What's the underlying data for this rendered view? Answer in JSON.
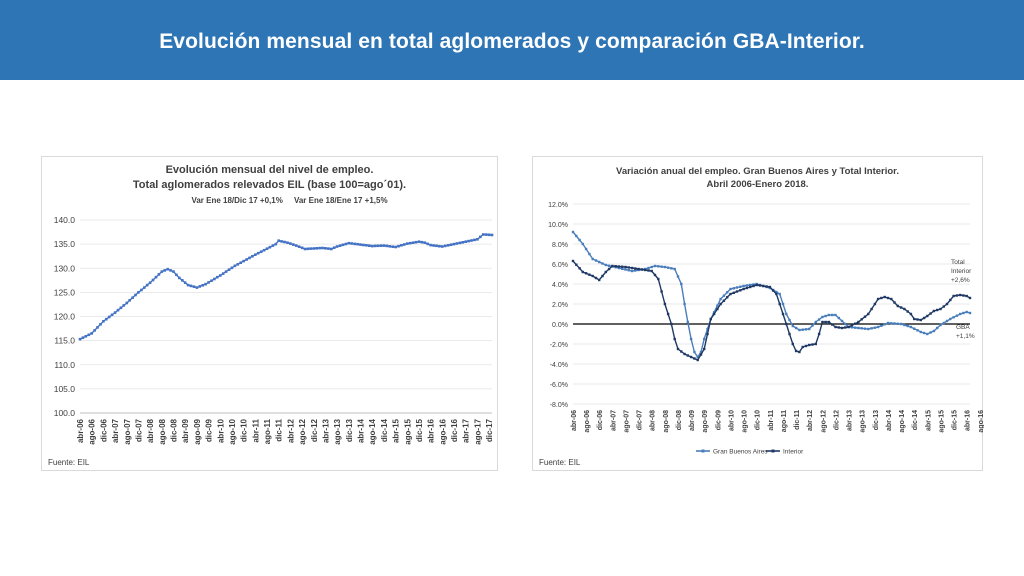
{
  "header": {
    "title": "Evolución mensual en total aglomerados y comparación GBA-Interior.",
    "bg_color": "#2e75b6"
  },
  "left_panel": {
    "source": "Fuente: EIL"
  },
  "right_panel": {
    "source": "Fuente: EIL",
    "annotation_interior": [
      "Total",
      "Interior",
      "+2,6%"
    ],
    "annotation_gba": [
      "GBA",
      "+1,1%"
    ]
  },
  "chart_data": [
    {
      "type": "line",
      "title": "Evolución mensual del nivel de empleo.",
      "subtitle": "Total aglomerados relevados EIL (base 100=ago´01).",
      "note": "Var Ene 18/Dic 17 +0,1%     Var Ene 18/Ene 17 +1,5%",
      "ylim": [
        100,
        140
      ],
      "yticks": [
        "140.0",
        "135.0",
        "130.0",
        "125.0",
        "120.0",
        "115.0",
        "110.0",
        "105.0",
        "100.0"
      ],
      "xtick_labels": [
        "abr-06",
        "ago-06",
        "dic-06",
        "abr-07",
        "ago-07",
        "dic-07",
        "abr-08",
        "ago-08",
        "dic-08",
        "abr-09",
        "ago-09",
        "dic-09",
        "abr-10",
        "ago-10",
        "dic-10",
        "abr-11",
        "ago-11",
        "dic-11",
        "abr-12",
        "ago-12",
        "dic-12",
        "abr-13",
        "ago-13",
        "dic-13",
        "abr-14",
        "ago-14",
        "dic-14",
        "abr-15",
        "ago-15",
        "dic-15",
        "abr-16",
        "ago-16",
        "dic-16",
        "abr-17",
        "ago-17",
        "dic-17"
      ],
      "grid": true,
      "color": "#4472c4",
      "series": [
        {
          "anchors": [
            [
              0,
              115.3
            ],
            [
              4,
              116.5
            ],
            [
              8,
              119.0
            ],
            [
              12,
              120.8
            ],
            [
              16,
              122.8
            ],
            [
              20,
              125.0
            ],
            [
              24,
              127.0
            ],
            [
              28,
              129.3
            ],
            [
              30,
              129.8
            ],
            [
              32,
              129.3
            ],
            [
              34,
              128.0
            ],
            [
              37,
              126.5
            ],
            [
              40,
              126.0
            ],
            [
              43,
              126.7
            ],
            [
              48,
              128.5
            ],
            [
              53,
              130.5
            ],
            [
              60,
              132.8
            ],
            [
              67,
              135.0
            ],
            [
              68,
              135.7
            ],
            [
              71,
              135.3
            ],
            [
              74,
              134.7
            ],
            [
              77,
              134.0
            ],
            [
              83,
              134.2
            ],
            [
              86,
              134.0
            ],
            [
              88,
              134.5
            ],
            [
              92,
              135.2
            ],
            [
              96,
              134.9
            ],
            [
              100,
              134.6
            ],
            [
              104,
              134.7
            ],
            [
              108,
              134.4
            ],
            [
              112,
              135.1
            ],
            [
              116,
              135.5
            ],
            [
              118,
              135.3
            ],
            [
              120,
              134.8
            ],
            [
              124,
              134.5
            ],
            [
              128,
              135.0
            ],
            [
              132,
              135.5
            ],
            [
              136,
              136.0
            ],
            [
              138,
              137.0
            ],
            [
              141,
              136.9
            ]
          ]
        }
      ]
    },
    {
      "type": "line",
      "title": "Variación anual del empleo. Gran Buenos Aires y Total Interior.",
      "subtitle": "Abril 2006-Enero 2018.",
      "ylim": [
        -8,
        12
      ],
      "yticks": [
        "12.0%",
        "10.0%",
        "8.0%",
        "6.0%",
        "4.0%",
        "2.0%",
        "0.0%",
        "-2.0%",
        "-4.0%",
        "-6.0%",
        "-8.0%"
      ],
      "xtick_labels": [
        "abr-06",
        "ago-06",
        "dic-06",
        "abr-07",
        "ago-07",
        "dic-07",
        "abr-08",
        "ago-08",
        "dic-08",
        "abr-09",
        "ago-09",
        "dic-09",
        "abr-10",
        "ago-10",
        "dic-10",
        "abr-11",
        "ago-11",
        "dic-11",
        "abr-12",
        "ago-12",
        "dic-12",
        "abr-13",
        "ago-13",
        "dic-13",
        "abr-14",
        "ago-14",
        "dic-14",
        "abr-15",
        "ago-15",
        "dic-15",
        "abr-16",
        "ago-16",
        "dic-16",
        "abr-17",
        "ago-17",
        "dic-17"
      ],
      "grid": true,
      "legend_position": "bottom",
      "series": [
        {
          "name": "Gran Buenos Aires",
          "color": "#4a7ebb",
          "anchors": [
            [
              0,
              9.2
            ],
            [
              3,
              8.0
            ],
            [
              6,
              6.5
            ],
            [
              10,
              5.9
            ],
            [
              14,
              5.6
            ],
            [
              18,
              5.3
            ],
            [
              22,
              5.5
            ],
            [
              25,
              5.8
            ],
            [
              28,
              5.7
            ],
            [
              31,
              5.5
            ],
            [
              33,
              4.0
            ],
            [
              34,
              2.0
            ],
            [
              35,
              0.2
            ],
            [
              36,
              -1.5
            ],
            [
              37,
              -2.8
            ],
            [
              38,
              -3.3
            ],
            [
              39,
              -2.8
            ],
            [
              40,
              -1.5
            ],
            [
              42,
              0.5
            ],
            [
              45,
              2.5
            ],
            [
              48,
              3.5
            ],
            [
              52,
              3.8
            ],
            [
              56,
              4.0
            ],
            [
              60,
              3.6
            ],
            [
              63,
              3.0
            ],
            [
              65,
              1.0
            ],
            [
              67,
              -0.2
            ],
            [
              69,
              -0.6
            ],
            [
              72,
              -0.5
            ],
            [
              74,
              0.2
            ],
            [
              76,
              0.7
            ],
            [
              78,
              0.9
            ],
            [
              80,
              0.9
            ],
            [
              82,
              0.3
            ],
            [
              84,
              -0.3
            ],
            [
              87,
              -0.4
            ],
            [
              90,
              -0.5
            ],
            [
              93,
              -0.3
            ],
            [
              96,
              0.1
            ],
            [
              100,
              0.0
            ],
            [
              103,
              -0.3
            ],
            [
              106,
              -0.8
            ],
            [
              108,
              -1.0
            ],
            [
              110,
              -0.7
            ],
            [
              112,
              -0.1
            ],
            [
              115,
              0.5
            ],
            [
              118,
              1.0
            ],
            [
              120,
              1.2
            ],
            [
              121,
              1.1
            ]
          ]
        },
        {
          "name": "Interior",
          "color": "#1f3864",
          "anchors": [
            [
              0,
              6.3
            ],
            [
              3,
              5.2
            ],
            [
              6,
              4.8
            ],
            [
              8,
              4.4
            ],
            [
              10,
              5.2
            ],
            [
              12,
              5.8
            ],
            [
              16,
              5.7
            ],
            [
              20,
              5.5
            ],
            [
              24,
              5.3
            ],
            [
              26,
              4.5
            ],
            [
              28,
              2.0
            ],
            [
              30,
              0.0
            ],
            [
              31,
              -1.5
            ],
            [
              32,
              -2.5
            ],
            [
              34,
              -3.0
            ],
            [
              36,
              -3.3
            ],
            [
              38,
              -3.6
            ],
            [
              40,
              -2.5
            ],
            [
              42,
              0.5
            ],
            [
              45,
              2.0
            ],
            [
              48,
              3.0
            ],
            [
              52,
              3.5
            ],
            [
              56,
              3.9
            ],
            [
              60,
              3.7
            ],
            [
              62,
              3.0
            ],
            [
              64,
              1.0
            ],
            [
              66,
              -1.0
            ],
            [
              67,
              -2.0
            ],
            [
              68,
              -2.7
            ],
            [
              69,
              -2.8
            ],
            [
              70,
              -2.3
            ],
            [
              72,
              -2.1
            ],
            [
              74,
              -2.0
            ],
            [
              75,
              -1.0
            ],
            [
              76,
              0.2
            ],
            [
              78,
              0.2
            ],
            [
              80,
              -0.3
            ],
            [
              82,
              -0.4
            ],
            [
              84,
              -0.3
            ],
            [
              87,
              0.2
            ],
            [
              90,
              1.0
            ],
            [
              93,
              2.5
            ],
            [
              95,
              2.7
            ],
            [
              97,
              2.5
            ],
            [
              99,
              1.8
            ],
            [
              101,
              1.5
            ],
            [
              103,
              1.0
            ],
            [
              104,
              0.5
            ],
            [
              106,
              0.4
            ],
            [
              108,
              0.8
            ],
            [
              110,
              1.3
            ],
            [
              112,
              1.5
            ],
            [
              114,
              2.0
            ],
            [
              116,
              2.8
            ],
            [
              118,
              2.9
            ],
            [
              120,
              2.8
            ],
            [
              121,
              2.6
            ]
          ]
        }
      ]
    }
  ]
}
